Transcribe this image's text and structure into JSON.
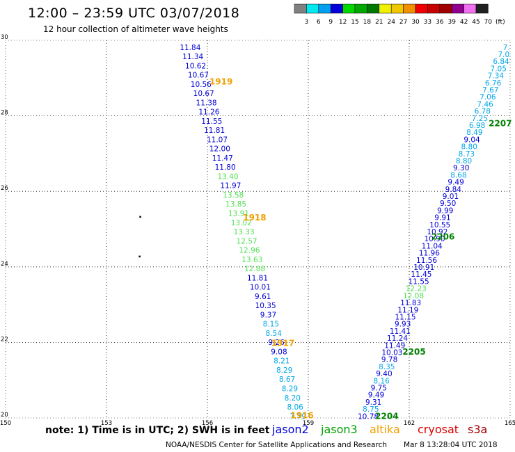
{
  "header": {
    "title": "12:00  –  23:59 UTC 03/07/2018",
    "subtitle": "12 hour collection of altimeter wave heights"
  },
  "colorbar": {
    "labels": [
      "3",
      "6",
      "9",
      "12",
      "15",
      "18",
      "21",
      "24",
      "27",
      "30",
      "33",
      "36",
      "39",
      "42",
      "45",
      "70",
      "(ft)"
    ],
    "colors": [
      "#808080",
      "#00e8f0",
      "#00a0f0",
      "#0000d8",
      "#00d800",
      "#00a800",
      "#007800",
      "#f0f000",
      "#f0c800",
      "#f09000",
      "#f00000",
      "#c80000",
      "#a00000",
      "#900090",
      "#f070f0",
      "#202020"
    ]
  },
  "footer": {
    "note": "note:  1) Time is in UTC;  2) SWH is in feet",
    "satellites": [
      {
        "name": "jason2",
        "color": "#0000d8"
      },
      {
        "name": "jason3",
        "color": "#00a000"
      },
      {
        "name": "altika",
        "color": "#f0a000"
      },
      {
        "name": "cryosat",
        "color": "#d80000"
      },
      {
        "name": "s3a",
        "color": "#a00000"
      }
    ],
    "credit": "NOAA/NESDIS Center for Satellite Applications and Research",
    "timestamp": "Mar  8 13:28:04 UTC 2018"
  },
  "chart_data": {
    "type": "scatter",
    "xlim": [
      150,
      165
    ],
    "ylim": [
      20,
      30
    ],
    "xticks": [
      "150",
      "153",
      "156",
      "159",
      "162",
      "165"
    ],
    "yticks": [
      "20",
      "22",
      "24",
      "26",
      "28",
      "30"
    ],
    "grid": true,
    "tracks": [
      {
        "name": "track-west",
        "lon_start": 155.49,
        "lat_start": 29.82,
        "lon_end": 158.69,
        "lat_end": 20.05,
        "values": [
          "11.84",
          "11.34",
          "10.62",
          "10.67",
          "10.56",
          "10.67",
          "11.38",
          "11.26",
          "11.55",
          "11.81",
          "11.07",
          "12.00",
          "11.47",
          "11.80",
          "13.40",
          "11.97",
          "13.58",
          "13.85",
          "13.91",
          "13.02",
          "13.33",
          "12.57",
          "12.96",
          "13.63",
          "12.88",
          "11.81",
          "10.01",
          "9.61",
          "10.35",
          "9.37",
          "8.15",
          "8.54",
          "9.26",
          "9.08",
          "8.21",
          "8.29",
          "8.67",
          "8.29",
          "8.20",
          "8.06",
          "7.79"
        ],
        "colors": [
          "#0000d8",
          "#0000d8",
          "#0000d8",
          "#0000d8",
          "#0000d8",
          "#0000d8",
          "#0000d8",
          "#0000d8",
          "#0000d8",
          "#0000d8",
          "#0000d8",
          "#0000d8",
          "#0000d8",
          "#0000d8",
          "#50e050",
          "#0000d8",
          "#50e050",
          "#50e050",
          "#50e050",
          "#50e050",
          "#50e050",
          "#50e050",
          "#50e050",
          "#50e050",
          "#50e050",
          "#0000d8",
          "#0000d8",
          "#0000d8",
          "#0000d8",
          "#0000d8",
          "#00a8e8",
          "#00a8e8",
          "#0000d8",
          "#0000d8",
          "#00a8e8",
          "#00a8e8",
          "#00a8e8",
          "#00a8e8",
          "#00a8e8",
          "#00a8e8",
          "#00a8e8"
        ]
      },
      {
        "name": "track-east",
        "lon_start": 164.89,
        "lat_start": 29.82,
        "lon_end": 160.78,
        "lat_end": 20.05,
        "values": [
          "7.",
          "7.0",
          "6.84",
          "7.05",
          "7.34",
          "6.76",
          "7.67",
          "7.06",
          "7.46",
          "6.78",
          "7.25",
          "6.98",
          "8.49",
          "9.04",
          "8.80",
          "8.73",
          "8.80",
          "9.30",
          "8.68",
          "9.49",
          "9.84",
          "9.01",
          "9.50",
          "9.99",
          "9.91",
          "10.55",
          "10.92",
          "10.90",
          "11.04",
          "11.96",
          "11.56",
          "10.91",
          "11.45",
          "11.55",
          "12.23",
          "12.08",
          "11.83",
          "11.19",
          "11.15",
          "9.93",
          "11.41",
          "11.24",
          "11.49",
          "10.03",
          "9.78",
          "8.35",
          "9.40",
          "8.16",
          "9.75",
          "9.49",
          "9.31",
          "8.75",
          "10.78"
        ],
        "colors": [
          "#00a8e8",
          "#00a8e8",
          "#00a8e8",
          "#00a8e8",
          "#00a8e8",
          "#00a8e8",
          "#00a8e8",
          "#00a8e8",
          "#00a8e8",
          "#00a8e8",
          "#00a8e8",
          "#00a8e8",
          "#00a8e8",
          "#0000d8",
          "#00a8e8",
          "#00a8e8",
          "#00a8e8",
          "#0000d8",
          "#00a8e8",
          "#0000d8",
          "#0000d8",
          "#0000d8",
          "#0000d8",
          "#0000d8",
          "#0000d8",
          "#0000d8",
          "#0000d8",
          "#0000d8",
          "#0000d8",
          "#0000d8",
          "#0000d8",
          "#0000d8",
          "#0000d8",
          "#0000d8",
          "#50e050",
          "#50e050",
          "#0000d8",
          "#0000d8",
          "#0000d8",
          "#0000d8",
          "#0000d8",
          "#0000d8",
          "#0000d8",
          "#0000d8",
          "#0000d8",
          "#00a8e8",
          "#0000d8",
          "#00a8e8",
          "#0000d8",
          "#0000d8",
          "#0000d8",
          "#00a8e8",
          "#0000d8"
        ]
      }
    ],
    "time_labels": [
      {
        "text": "1919",
        "lon": 156.06,
        "lat": 28.9,
        "color": "#f0a000"
      },
      {
        "text": "1918",
        "lon": 157.06,
        "lat": 25.3,
        "color": "#f0a000"
      },
      {
        "text": "1917",
        "lon": 157.9,
        "lat": 21.98,
        "color": "#f0a000"
      },
      {
        "text": "1916",
        "lon": 158.47,
        "lat": 20.06,
        "color": "#f0a000"
      },
      {
        "text": "2207",
        "lon": 164.36,
        "lat": 27.8,
        "color": "#008000"
      },
      {
        "text": "2206",
        "lon": 162.66,
        "lat": 24.8,
        "color": "#008000"
      },
      {
        "text": "2205",
        "lon": 161.8,
        "lat": 21.75,
        "color": "#008000"
      },
      {
        "text": "2204",
        "lon": 160.99,
        "lat": 20.05,
        "color": "#008000"
      }
    ],
    "markers": [
      {
        "lon": 154.0,
        "lat": 25.33
      },
      {
        "lon": 153.98,
        "lat": 24.28
      }
    ]
  }
}
